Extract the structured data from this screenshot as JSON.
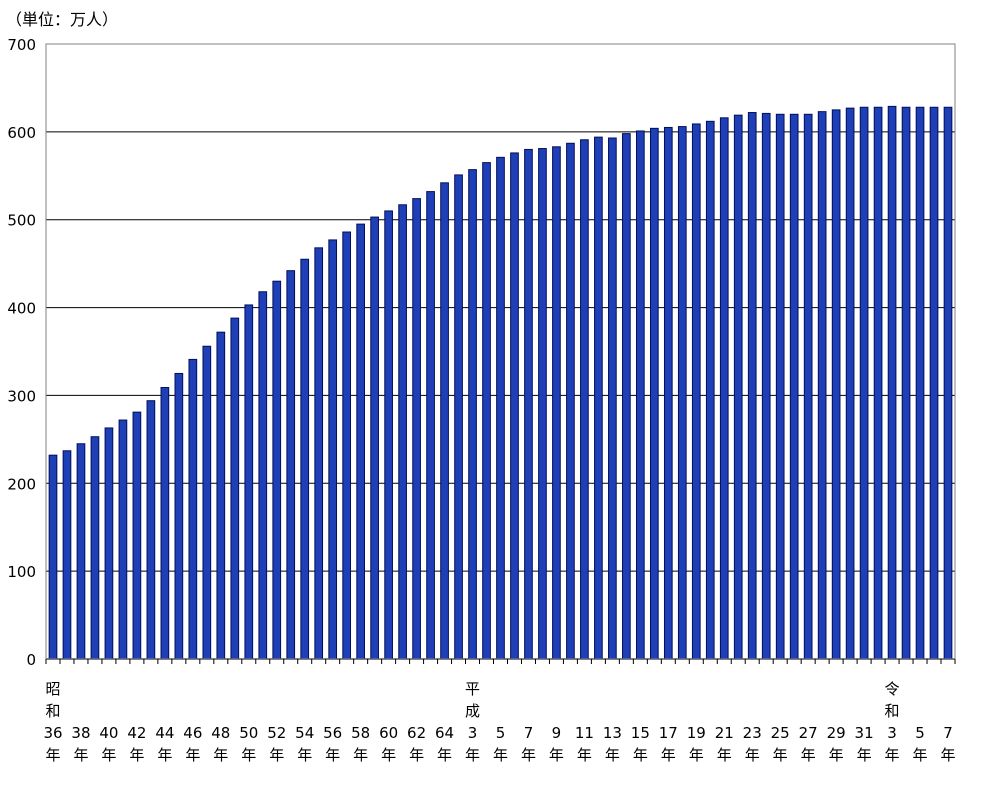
{
  "unit_label": "（単位：万人）",
  "chart_data": {
    "type": "bar",
    "ylim": [
      0,
      700
    ],
    "y_ticks": [
      0,
      100,
      200,
      300,
      400,
      500,
      600,
      700
    ],
    "grid": true,
    "bar_color": "#1e3fb5",
    "bar_edge_color": "#00105a",
    "era_labels": [
      {
        "at": "36",
        "lines": [
          "昭",
          "和"
        ]
      },
      {
        "at": "3a",
        "lines": [
          "平",
          "成"
        ]
      },
      {
        "at": "3b",
        "lines": [
          "令",
          "和"
        ]
      }
    ],
    "tick_suffix": "年",
    "categories": [
      {
        "id": "36",
        "label": "36"
      },
      {
        "id": "37",
        "label": ""
      },
      {
        "id": "38",
        "label": "38"
      },
      {
        "id": "39",
        "label": ""
      },
      {
        "id": "40",
        "label": "40"
      },
      {
        "id": "41",
        "label": ""
      },
      {
        "id": "42",
        "label": "42"
      },
      {
        "id": "43",
        "label": ""
      },
      {
        "id": "44",
        "label": "44"
      },
      {
        "id": "45",
        "label": ""
      },
      {
        "id": "46",
        "label": "46"
      },
      {
        "id": "47",
        "label": ""
      },
      {
        "id": "48",
        "label": "48"
      },
      {
        "id": "49",
        "label": ""
      },
      {
        "id": "50",
        "label": "50"
      },
      {
        "id": "51",
        "label": ""
      },
      {
        "id": "52",
        "label": "52"
      },
      {
        "id": "53",
        "label": ""
      },
      {
        "id": "54",
        "label": "54"
      },
      {
        "id": "55",
        "label": ""
      },
      {
        "id": "56",
        "label": "56"
      },
      {
        "id": "57",
        "label": ""
      },
      {
        "id": "58",
        "label": "58"
      },
      {
        "id": "59",
        "label": ""
      },
      {
        "id": "60",
        "label": "60"
      },
      {
        "id": "61",
        "label": ""
      },
      {
        "id": "62",
        "label": "62"
      },
      {
        "id": "63",
        "label": ""
      },
      {
        "id": "64",
        "label": "64"
      },
      {
        "id": "h2",
        "label": ""
      },
      {
        "id": "3a",
        "label": "3"
      },
      {
        "id": "h4",
        "label": ""
      },
      {
        "id": "h5",
        "label": "5"
      },
      {
        "id": "h6",
        "label": ""
      },
      {
        "id": "h7",
        "label": "7"
      },
      {
        "id": "h8",
        "label": ""
      },
      {
        "id": "h9",
        "label": "9"
      },
      {
        "id": "h10",
        "label": ""
      },
      {
        "id": "h11",
        "label": "11"
      },
      {
        "id": "h12",
        "label": ""
      },
      {
        "id": "h13",
        "label": "13"
      },
      {
        "id": "h14",
        "label": ""
      },
      {
        "id": "h15",
        "label": "15"
      },
      {
        "id": "h16",
        "label": ""
      },
      {
        "id": "h17",
        "label": "17"
      },
      {
        "id": "h18",
        "label": ""
      },
      {
        "id": "h19",
        "label": "19"
      },
      {
        "id": "h20",
        "label": ""
      },
      {
        "id": "h21",
        "label": "21"
      },
      {
        "id": "h22",
        "label": ""
      },
      {
        "id": "h23",
        "label": "23"
      },
      {
        "id": "h24",
        "label": ""
      },
      {
        "id": "h25",
        "label": "25"
      },
      {
        "id": "h26",
        "label": ""
      },
      {
        "id": "h27",
        "label": "27"
      },
      {
        "id": "h28",
        "label": ""
      },
      {
        "id": "h29",
        "label": "29"
      },
      {
        "id": "h30",
        "label": ""
      },
      {
        "id": "h31",
        "label": "31"
      },
      {
        "id": "r2",
        "label": ""
      },
      {
        "id": "3b",
        "label": "3"
      },
      {
        "id": "r4",
        "label": ""
      },
      {
        "id": "r5",
        "label": "5"
      },
      {
        "id": "r6",
        "label": ""
      },
      {
        "id": "r7",
        "label": "7"
      }
    ],
    "values": [
      232,
      237,
      245,
      253,
      263,
      272,
      281,
      294,
      309,
      325,
      341,
      356,
      372,
      388,
      403,
      418,
      430,
      442,
      455,
      468,
      477,
      486,
      495,
      503,
      510,
      517,
      524,
      532,
      542,
      551,
      557,
      565,
      571,
      576,
      580,
      581,
      583,
      587,
      591,
      594,
      593,
      598,
      601,
      604,
      605,
      606,
      609,
      612,
      616,
      619,
      622,
      621,
      620,
      620,
      620,
      623,
      625,
      627,
      628,
      628,
      629,
      628,
      628,
      628,
      628
    ]
  }
}
